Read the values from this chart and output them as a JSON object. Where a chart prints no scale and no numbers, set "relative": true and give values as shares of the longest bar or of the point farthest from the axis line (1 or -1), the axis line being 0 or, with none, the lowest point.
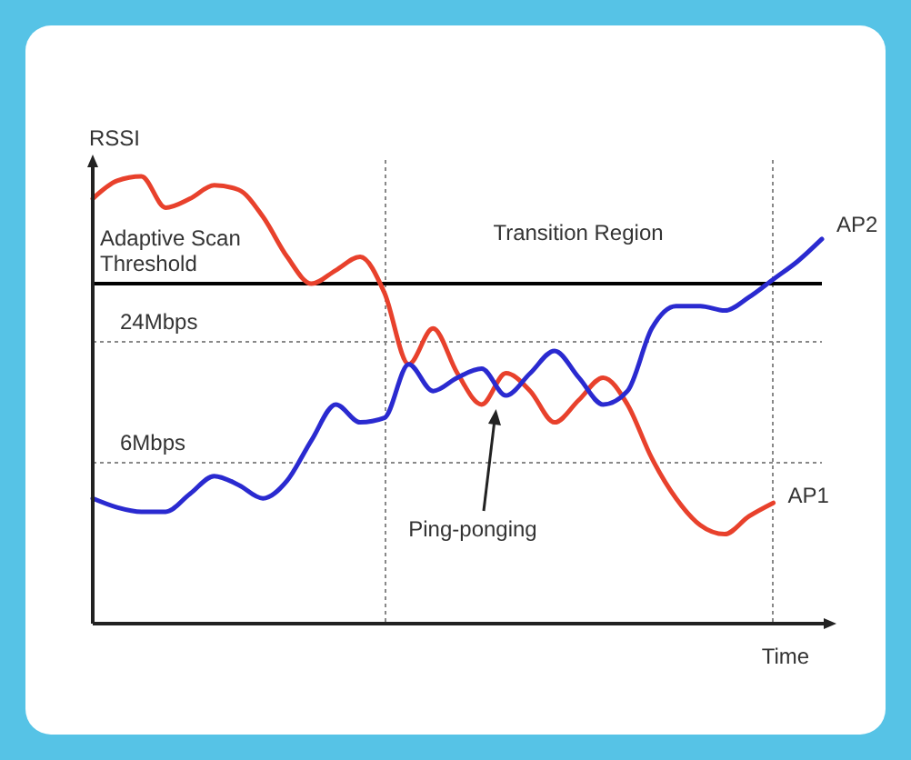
{
  "chart_data": {
    "type": "line",
    "relative": true,
    "xlabel": "Time",
    "ylabel": "RSSI",
    "legend": false,
    "marker": "none",
    "line_style": "solid",
    "categories": [
      null,
      null,
      null,
      null,
      null,
      null,
      null,
      null,
      null,
      null,
      null,
      null,
      null,
      null,
      null,
      null,
      null,
      null,
      null,
      null,
      null,
      null,
      null,
      null,
      null,
      null,
      null,
      null,
      null,
      null,
      null
    ],
    "series": [
      {
        "name": "AP1",
        "color": "#e8412c",
        "values": [
          0.95,
          0.99,
          1,
          0.93,
          0.95,
          0.98,
          0.97,
          0.91,
          0.82,
          0.76,
          0.79,
          0.82,
          0.74,
          0.58,
          0.66,
          0.56,
          0.49,
          0.56,
          0.52,
          0.45,
          0.5,
          0.55,
          0.49,
          0.37,
          0.28,
          0.22,
          0.2,
          0.24,
          0.27,
          null,
          null
        ]
      },
      {
        "name": "AP2",
        "color": "#2a2ad0",
        "values": [
          0.28,
          0.26,
          0.25,
          0.25,
          0.29,
          0.33,
          0.31,
          0.28,
          0.32,
          0.41,
          0.49,
          0.45,
          0.46,
          0.58,
          0.52,
          0.55,
          0.57,
          0.51,
          0.56,
          0.61,
          0.55,
          0.49,
          0.52,
          0.66,
          0.71,
          0.71,
          0.7,
          0.73,
          0.77,
          0.81,
          0.86
        ]
      }
    ],
    "ref_lines": [
      {
        "axis": "y",
        "value": 0.76,
        "label": "Adaptive Scan Threshold",
        "color": "#000000",
        "line_style": "solid"
      },
      {
        "axis": "y",
        "value": 0.63,
        "label": "24Mbps",
        "color": "#888888",
        "line_style": "dotted"
      },
      {
        "axis": "y",
        "value": 0.36,
        "label": "6Mbps",
        "color": "#888888",
        "line_style": "dotted"
      }
    ],
    "annotations": [
      "Transition Region",
      "Ping-ponging"
    ]
  }
}
